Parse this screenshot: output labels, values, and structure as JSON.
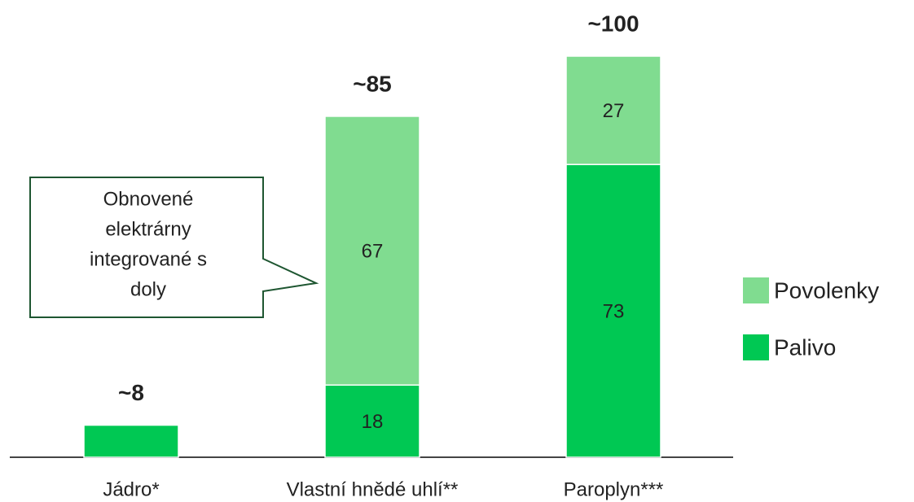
{
  "chart_data": {
    "type": "stacked_bar",
    "categories": [
      "Jádro*",
      "Vlastní hnědé uhlí**",
      "Paroplyn***"
    ],
    "series": [
      {
        "name": "Palivo",
        "color": "#00c853",
        "values": [
          8,
          18,
          73
        ]
      },
      {
        "name": "Povolenky",
        "color": "#80dc90",
        "values": [
          null,
          67,
          27
        ]
      }
    ],
    "total_labels": [
      "~8",
      "~85",
      "~100"
    ],
    "annotation": [
      "Obnovené",
      "elektrárny",
      "integrované s",
      "doly"
    ]
  }
}
